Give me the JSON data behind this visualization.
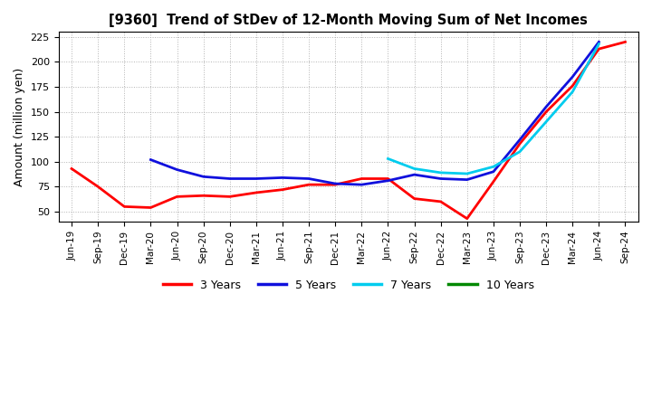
{
  "title": "[9360]  Trend of StDev of 12-Month Moving Sum of Net Incomes",
  "ylabel": "Amount (million yen)",
  "ylim": [
    40,
    230
  ],
  "yticks": [
    50,
    75,
    100,
    125,
    150,
    175,
    200,
    225
  ],
  "background_color": "#ffffff",
  "grid_color": "#aaaaaa",
  "x_labels": [
    "Jun-19",
    "Sep-19",
    "Dec-19",
    "Mar-20",
    "Jun-20",
    "Sep-20",
    "Dec-20",
    "Mar-21",
    "Jun-21",
    "Sep-21",
    "Dec-21",
    "Mar-22",
    "Jun-22",
    "Sep-22",
    "Dec-22",
    "Mar-23",
    "Jun-23",
    "Sep-23",
    "Dec-23",
    "Mar-24",
    "Jun-24",
    "Sep-24"
  ],
  "series": {
    "3 Years": {
      "color": "#ff0000",
      "linewidth": 2.0,
      "data_y": [
        93,
        75,
        55,
        54,
        65,
        66,
        65,
        69,
        72,
        77,
        77,
        83,
        83,
        63,
        60,
        43,
        80,
        118,
        150,
        176,
        213,
        220
      ]
    },
    "5 Years": {
      "color": "#1010dd",
      "linewidth": 2.0,
      "data_y": [
        null,
        null,
        null,
        102,
        92,
        85,
        83,
        83,
        84,
        83,
        78,
        77,
        81,
        87,
        83,
        82,
        90,
        122,
        155,
        185,
        220,
        null
      ]
    },
    "7 Years": {
      "color": "#00ccee",
      "linewidth": 2.0,
      "data_y": [
        null,
        null,
        null,
        null,
        null,
        null,
        null,
        null,
        null,
        null,
        null,
        null,
        103,
        93,
        89,
        88,
        95,
        110,
        140,
        170,
        218,
        null
      ]
    },
    "10 Years": {
      "color": "#008800",
      "linewidth": 2.0,
      "data_y": [
        null,
        null,
        null,
        null,
        null,
        null,
        null,
        null,
        null,
        null,
        null,
        null,
        null,
        null,
        null,
        null,
        null,
        null,
        null,
        null,
        215,
        null
      ]
    }
  },
  "legend": {
    "labels": [
      "3 Years",
      "5 Years",
      "7 Years",
      "10 Years"
    ],
    "colors": [
      "#ff0000",
      "#1010dd",
      "#00ccee",
      "#008800"
    ]
  }
}
